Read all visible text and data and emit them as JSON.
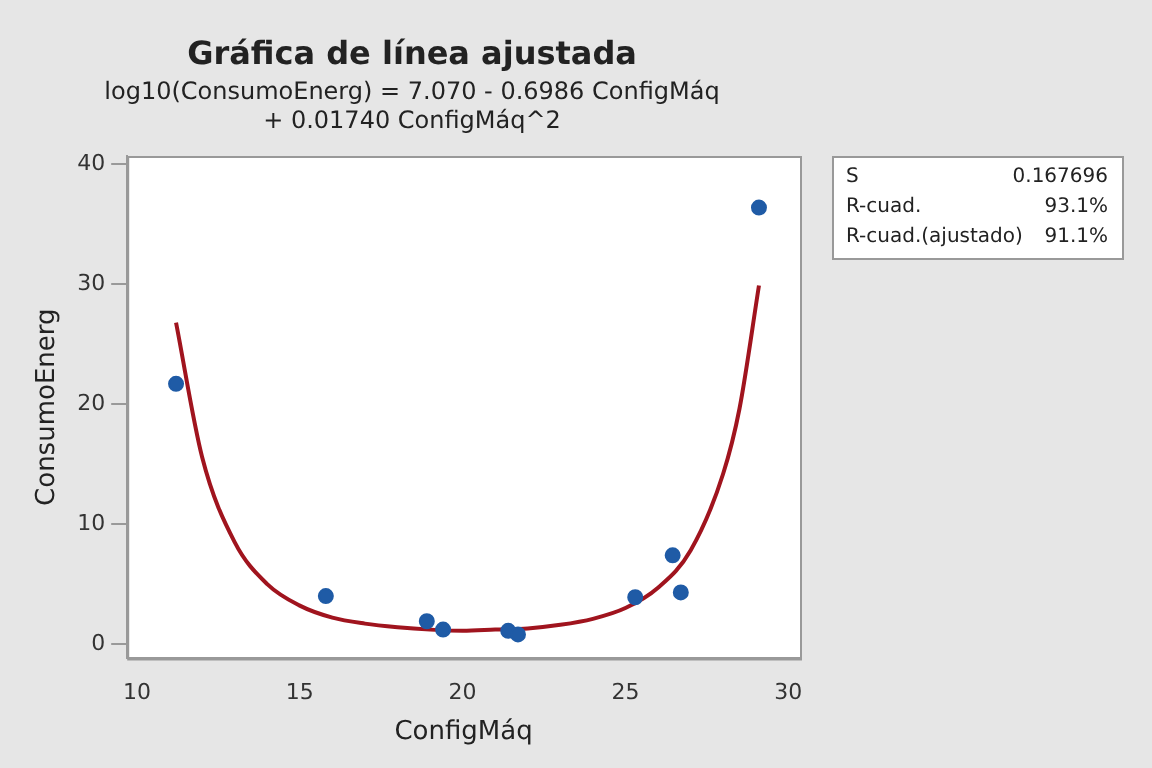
{
  "chart_data": {
    "type": "scatter",
    "title": "Gráfica de línea ajustada",
    "subtitle": "log10(ConsumoEnerg) = 7.070 - 0.6986 ConfigMáq\n+ 0.01740 ConfigMáq^2",
    "xlabel": "ConfigMáq",
    "ylabel": "ConsumoEnerg",
    "series": [
      {
        "color": "#1f5ba6",
        "marker": "circle",
        "x": [
          11.2,
          15.8,
          18.9,
          19.4,
          21.4,
          21.7,
          25.3,
          26.45,
          26.7,
          29.1
        ],
        "values": [
          21.7,
          4.0,
          1.9,
          1.2,
          1.1,
          0.8,
          3.9,
          7.4,
          4.3,
          36.4
        ]
      },
      {
        "type": "line",
        "marker": "none",
        "color": "#a0141e",
        "x": [
          11.2,
          12,
          13,
          14,
          15,
          16,
          17,
          18,
          19,
          20,
          21,
          22,
          23,
          24,
          25,
          26,
          27,
          28,
          28.5,
          29.1
        ],
        "values": [
          26.8,
          15.6,
          8.5,
          5.0,
          3.2,
          2.2,
          1.7,
          1.4,
          1.2,
          1.1,
          1.2,
          1.3,
          1.6,
          2.1,
          3.0,
          4.7,
          7.8,
          14.2,
          19.6,
          29.9
        ]
      }
    ],
    "xlim": [
      9.7,
      30.36
    ],
    "xticks": [
      10,
      15,
      20,
      25,
      30
    ],
    "ylim": [
      -1.2,
      40.7
    ],
    "yticks": [
      0,
      10,
      20,
      30,
      40
    ],
    "grid": false,
    "legend": false,
    "line_style": "solid",
    "annotations": [
      "S",
      "0.167696",
      "R-cuad.",
      "93.1%",
      "R-cuad.(ajustado)",
      "91.1%"
    ]
  }
}
